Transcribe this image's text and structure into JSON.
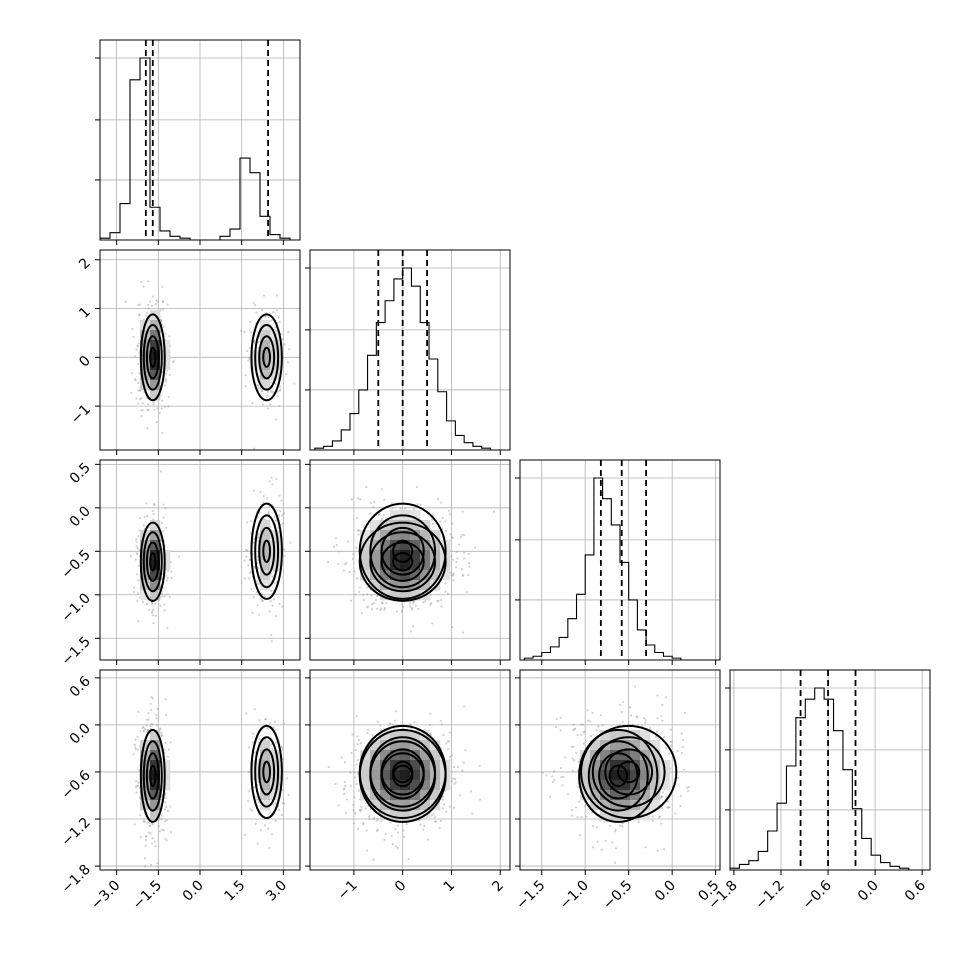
{
  "chart_data": {
    "type": "corner",
    "params": [
      {
        "key": "p0",
        "label": "",
        "range": [
          -3.6,
          3.6
        ],
        "ticks": [
          -3.0,
          -1.5,
          0.0,
          1.5,
          3.0
        ],
        "tick_labels": [
          "−3.0",
          "−1.5",
          "0.0",
          "1.5",
          "3.0"
        ],
        "hist": {
          "edges_start": -3.6,
          "bin_width": 0.36,
          "counts": [
            0.01,
            0.04,
            0.2,
            0.88,
            1.0,
            0.18,
            0.05,
            0.02,
            0.01,
            0.0,
            0.0,
            0.0,
            0.02,
            0.06,
            0.45,
            0.37,
            0.13,
            0.03,
            0.01,
            0.0
          ]
        },
        "quantiles": [
          -1.95,
          -1.7,
          2.45
        ]
      },
      {
        "key": "p1",
        "label": "",
        "range": [
          -1.9,
          2.2
        ],
        "ticks": [
          -1,
          0,
          1,
          2
        ],
        "tick_labels": [
          "−1",
          "0",
          "1",
          "2"
        ],
        "hist": {
          "edges_start": -1.8,
          "bin_width": 0.18,
          "counts": [
            0.01,
            0.02,
            0.05,
            0.11,
            0.2,
            0.33,
            0.52,
            0.7,
            0.82,
            0.94,
            1.0,
            0.9,
            0.7,
            0.5,
            0.32,
            0.16,
            0.08,
            0.04,
            0.02,
            0.01,
            0.0,
            0.0
          ]
        },
        "quantiles": [
          -0.5,
          0.0,
          0.5
        ],
        "ytick_values": [
          -1,
          0,
          1,
          2
        ]
      },
      {
        "key": "p2",
        "label": "",
        "range": [
          -1.75,
          0.55
        ],
        "ticks": [
          -1.5,
          -1.0,
          -0.5,
          0.0,
          0.5
        ],
        "tick_labels": [
          "−1.5",
          "−1.0",
          "−0.5",
          "0.0",
          "0.5"
        ],
        "hist": {
          "edges_start": -1.7,
          "bin_width": 0.1,
          "counts": [
            0.01,
            0.02,
            0.04,
            0.07,
            0.12,
            0.22,
            0.35,
            0.56,
            0.97,
            0.86,
            0.72,
            0.52,
            0.32,
            0.16,
            0.08,
            0.04,
            0.02,
            0.01,
            0.0,
            0.0,
            0.0,
            0.0
          ]
        },
        "quantiles": [
          -0.82,
          -0.58,
          -0.3
        ],
        "ytick_values": [
          0.5,
          0.0,
          -0.5,
          -1.0,
          -1.5
        ]
      },
      {
        "key": "p3",
        "label": "",
        "range": [
          -1.85,
          0.7
        ],
        "ticks": [
          -1.8,
          -1.2,
          -0.6,
          0.0,
          0.6
        ],
        "tick_labels": [
          "−1.8",
          "−1.2",
          "−0.6",
          "0.0",
          "0.6"
        ],
        "hist": {
          "edges_start": -1.85,
          "bin_width": 0.12,
          "counts": [
            0.01,
            0.03,
            0.05,
            0.1,
            0.21,
            0.36,
            0.56,
            0.82,
            0.92,
            0.98,
            0.92,
            0.75,
            0.54,
            0.33,
            0.17,
            0.08,
            0.04,
            0.02,
            0.01,
            0.0,
            0.0
          ]
        },
        "quantiles": [
          -0.95,
          -0.6,
          -0.25
        ],
        "ytick_values": [
          0.6,
          0.0,
          -0.6,
          -1.2,
          -1.8
        ]
      }
    ],
    "components": [
      {
        "weight": 0.68,
        "mean": [
          -1.7,
          0.0,
          -0.62,
          -0.65
        ],
        "sd": [
          0.22,
          0.45,
          0.23,
          0.3
        ]
      },
      {
        "weight": 0.32,
        "mean": [
          2.4,
          0.0,
          -0.5,
          -0.6
        ],
        "sd": [
          0.28,
          0.45,
          0.28,
          0.3
        ]
      }
    ],
    "hist_yticks": [
      0.33,
      0.66,
      1.0
    ],
    "contour_levels": [
      0.9,
      0.6,
      0.3,
      0.12
    ]
  }
}
